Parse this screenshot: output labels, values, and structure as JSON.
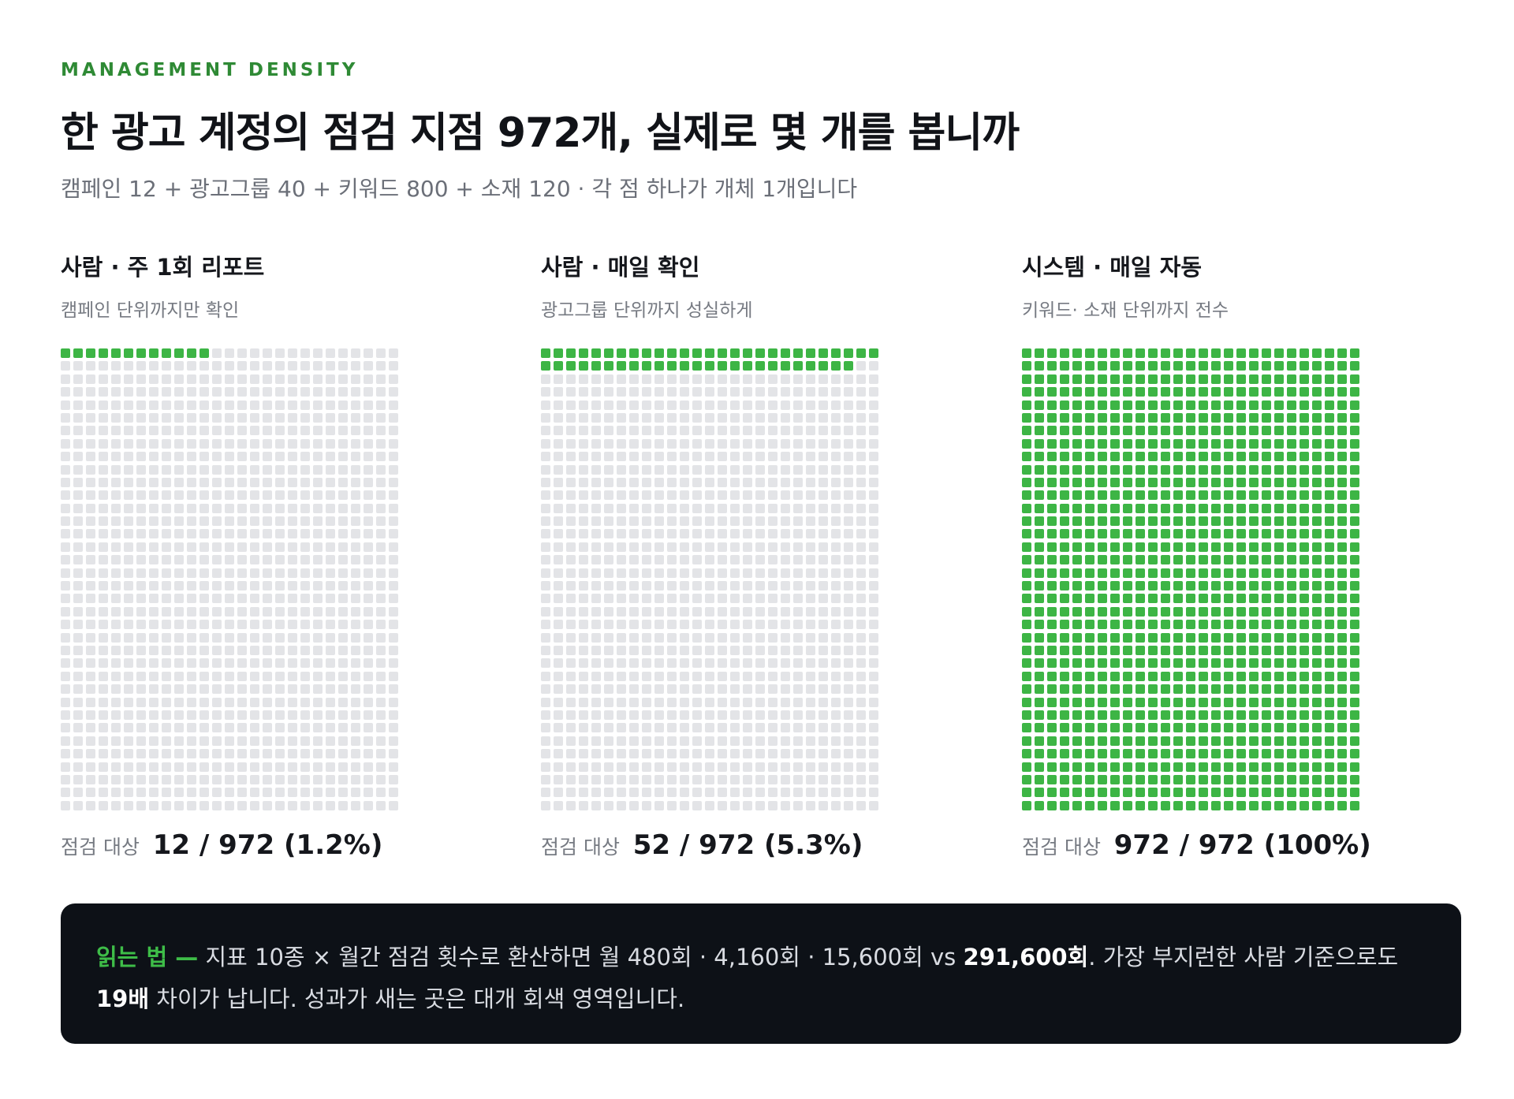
{
  "header": {
    "eyebrow": "MANAGEMENT DENSITY",
    "title": "한 광고 계정의 점검 지점 972개, 실제로 몇 개를 봅니까",
    "subtitle": "캠페인 12 + 광고그룹 40 + 키워드 800 + 소재 120 · 각 점 하나가 개체 1개입니다"
  },
  "colors": {
    "accent": "#3db545",
    "inactive": "#e3e4e7",
    "eyebrow": "#2f8a35",
    "note_bg": "#0d1117"
  },
  "chart_data": {
    "type": "waffle",
    "total": 972,
    "panels": [
      {
        "title": "사람 · 주 1회 리포트",
        "subtitle": "캠페인 단위까지만 확인",
        "checked": 12,
        "total": 972,
        "footer_label": "점검 대상",
        "footer_value": "12",
        "footer_rest": " / 972 (1.2%)"
      },
      {
        "title": "사람 · 매일 확인",
        "subtitle": "광고그룹 단위까지 성실하게",
        "checked": 52,
        "total": 972,
        "footer_label": "점검 대상",
        "footer_value": "52",
        "footer_rest": " / 972 (5.3%)"
      },
      {
        "title": "시스템 · 매일 자동",
        "subtitle": "키워드· 소재 단위까지 전수",
        "checked": 972,
        "total": 972,
        "footer_label": "점검 대상",
        "footer_value": "972",
        "footer_rest": " / 972 (100%)"
      }
    ]
  },
  "note": {
    "lead": "읽는 법 —",
    "text1": " 지표 10종 × 월간 점검 횟수로 환산하면 월 480회 · 4,160회 · 15,600회 vs ",
    "bold1": "291,600회",
    "text2": ". 가장 부지런한 사람 기준으로도 ",
    "bold2": "19배",
    "text3": " 차이가 납니다. 성과가 새는 곳은 대개 회색 영역입니다."
  }
}
